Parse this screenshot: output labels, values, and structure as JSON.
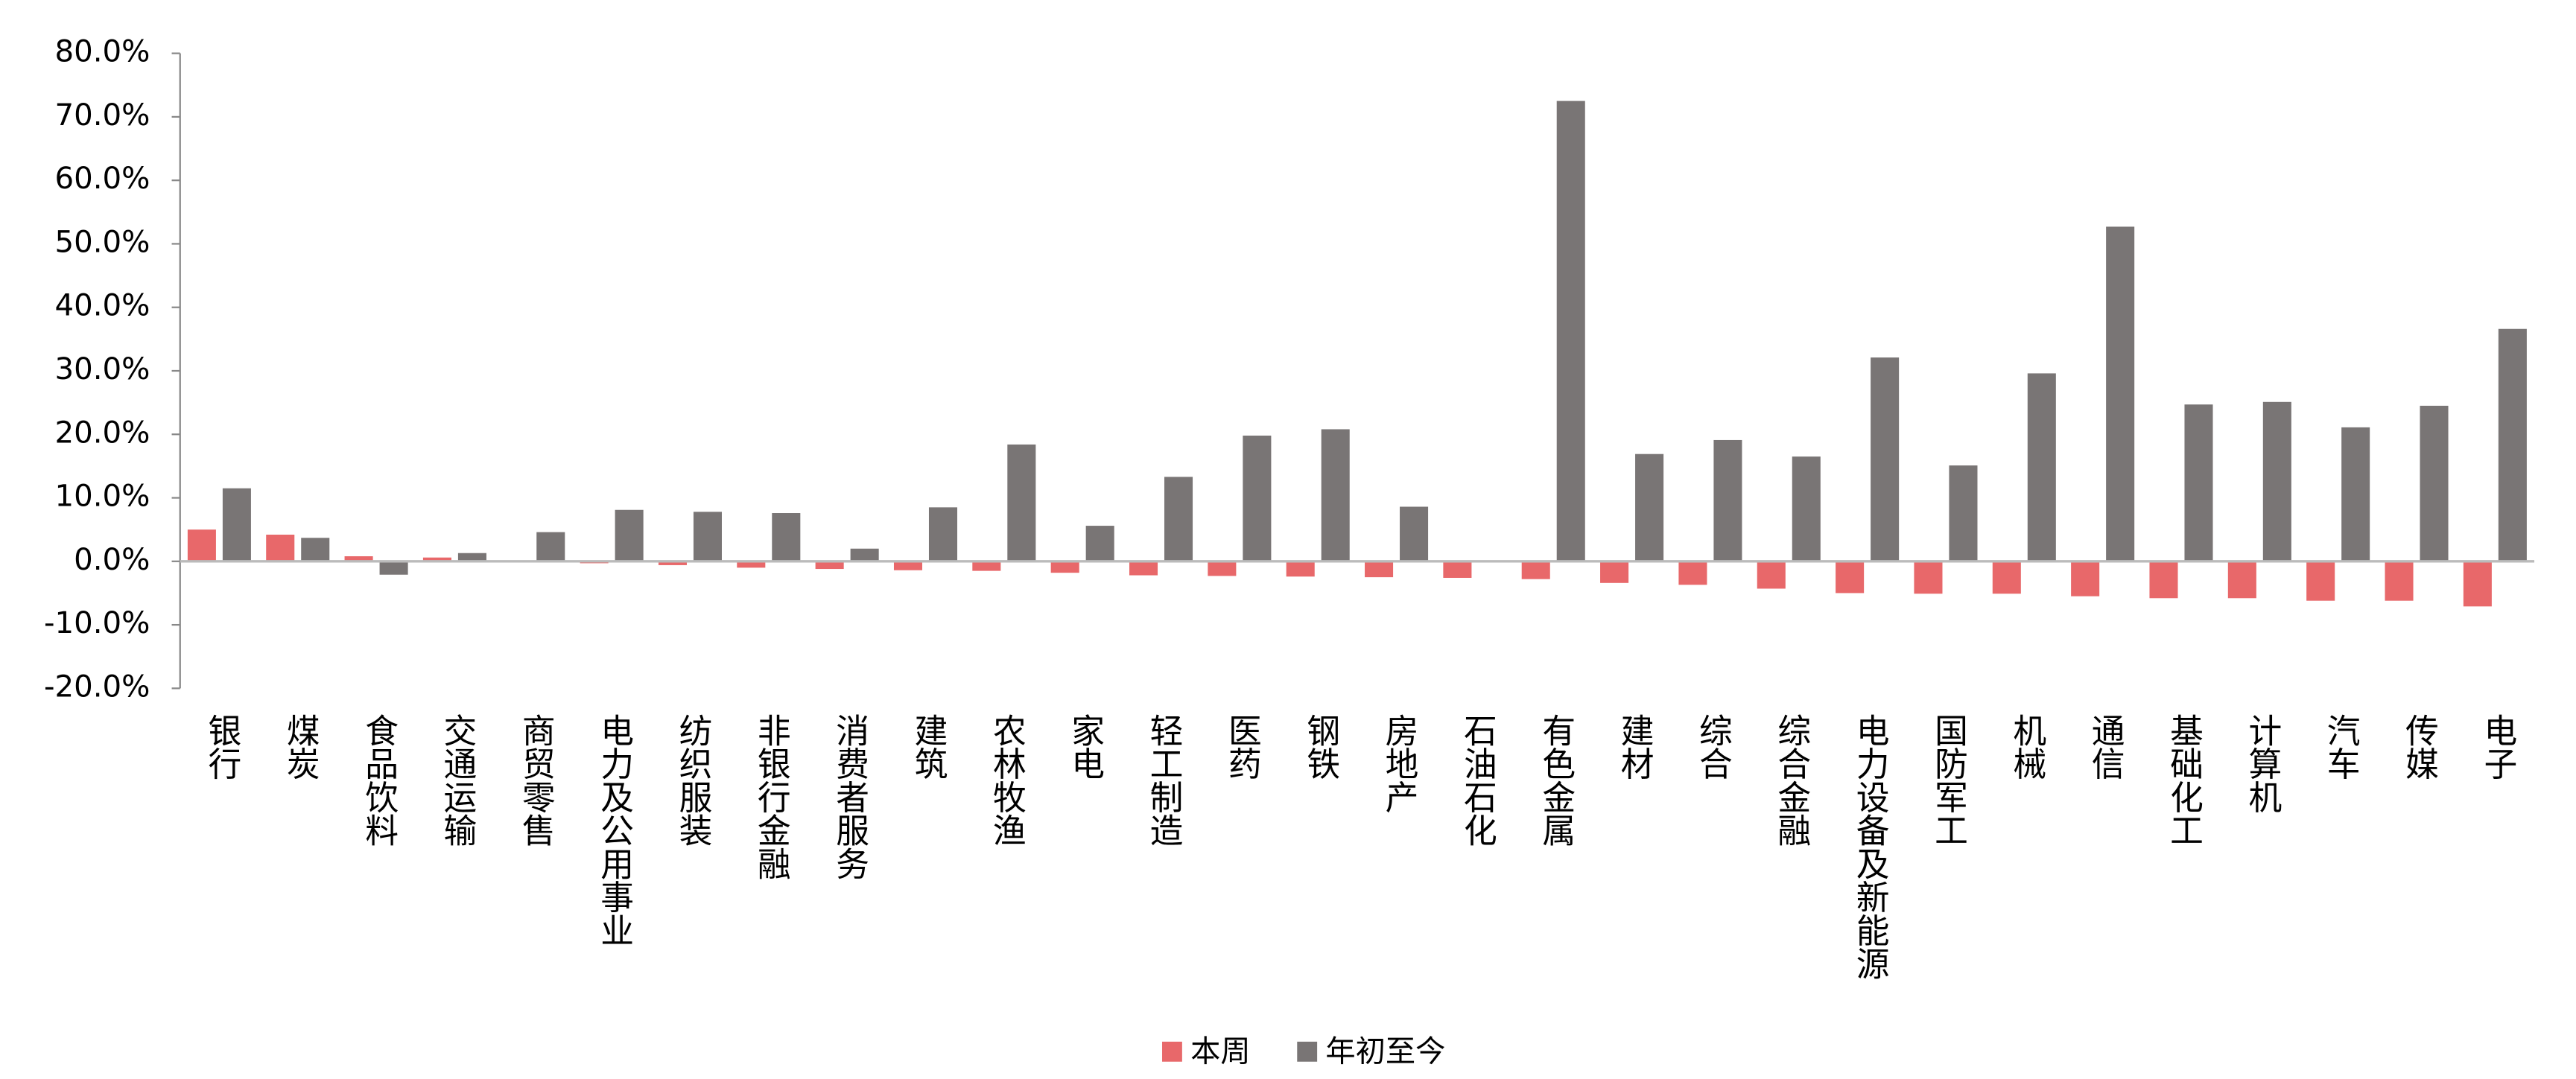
{
  "chart_data": {
    "type": "bar",
    "categories": [
      "银行",
      "煤炭",
      "食品饮料",
      "交通运输",
      "商贸零售",
      "电力及公用事业",
      "纺织服装",
      "非银行金融",
      "消费者服务",
      "建筑",
      "农林牧渔",
      "家电",
      "轻工制造",
      "医药",
      "钢铁",
      "房地产",
      "石油石化",
      "有色金属",
      "建材",
      "综合",
      "综合金融",
      "电力设备及新能源",
      "国防军工",
      "机械",
      "通信",
      "基础化工",
      "计算机",
      "汽车",
      "传媒",
      "电子"
    ],
    "series": [
      {
        "name": "本周",
        "color": "#e8686a",
        "values": [
          5.0,
          4.2,
          0.8,
          0.6,
          0.1,
          -0.3,
          -0.6,
          -1.0,
          -1.2,
          -1.4,
          -1.5,
          -1.8,
          -2.2,
          -2.3,
          -2.4,
          -2.5,
          -2.6,
          -2.8,
          -3.4,
          -3.7,
          -4.3,
          -5.0,
          -5.1,
          -5.1,
          -5.5,
          -5.8,
          -5.8,
          -6.2,
          -6.2,
          -7.1
        ]
      },
      {
        "name": "年初至今",
        "color": "#797575",
        "values": [
          11.5,
          3.7,
          -2.1,
          1.3,
          4.6,
          8.1,
          7.8,
          7.6,
          2.0,
          8.5,
          18.4,
          5.6,
          13.3,
          19.8,
          20.8,
          8.6,
          0.0,
          72.5,
          16.9,
          19.1,
          16.5,
          32.1,
          15.1,
          29.6,
          52.7,
          24.7,
          25.1,
          21.1,
          24.5,
          36.6
        ]
      }
    ],
    "ylim": [
      -20,
      80
    ],
    "yticks": [
      {
        "value": -20,
        "label": "-20.0%"
      },
      {
        "value": -10,
        "label": "-10.0%"
      },
      {
        "value": 0,
        "label": "0.0%"
      },
      {
        "value": 10,
        "label": "10.0%"
      },
      {
        "value": 20,
        "label": "20.0%"
      },
      {
        "value": 30,
        "label": "30.0%"
      },
      {
        "value": 40,
        "label": "40.0%"
      },
      {
        "value": 50,
        "label": "50.0%"
      },
      {
        "value": 60,
        "label": "60.0%"
      },
      {
        "value": 70,
        "label": "70.0%"
      },
      {
        "value": 80,
        "label": "80.0%"
      }
    ],
    "legend": "bottom"
  }
}
